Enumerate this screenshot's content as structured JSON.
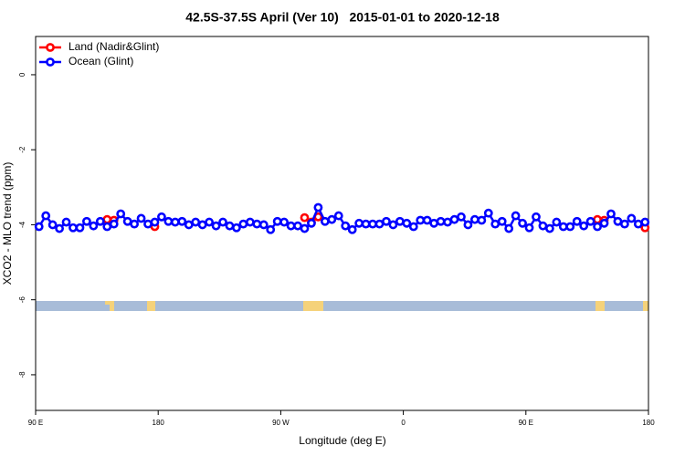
{
  "chart_data": {
    "type": "line",
    "title": "42.5S-37.5S April (Ver 10)   2015-01-01 to 2020-12-18",
    "x_label": "Longitude (deg E)",
    "y_label": "XCO2 - MLO trend (ppm)",
    "xlim": [
      90,
      540
    ],
    "ylim": [
      -8.95,
      1.02
    ],
    "xticks": [
      {
        "value": 90,
        "label": "90 E"
      },
      180,
      {
        "value": 270,
        "label": "90 W"
      },
      {
        "value": 360,
        "label": "0"
      },
      {
        "value": 450,
        "label": "90 E"
      },
      {
        "value": 540,
        "label": "180"
      }
    ],
    "yticks": [
      0,
      -2,
      -4,
      -6,
      -8
    ],
    "legend": "top-left",
    "x": [
      92.5,
      97.5,
      102.5,
      107.5,
      112.5,
      117.5,
      122.5,
      127.5,
      132.5,
      137.5,
      142.5,
      147.5,
      152.5,
      157.5,
      162.5,
      167.5,
      172.5,
      177.5,
      182.5,
      187.5,
      192.5,
      197.5,
      202.5,
      207.5,
      212.5,
      217.5,
      222.5,
      227.5,
      232.5,
      237.5,
      242.5,
      247.5,
      252.5,
      257.5,
      262.5,
      267.5,
      272.5,
      277.5,
      282.5,
      287.5,
      292.5,
      297.5,
      302.5,
      307.5,
      312.5,
      317.5,
      322.5,
      327.5,
      332.5,
      337.5,
      342.5,
      347.5,
      352.5,
      357.5,
      362.5,
      367.5,
      372.5,
      377.5,
      382.5,
      387.5,
      392.5,
      397.5,
      402.5,
      407.5,
      412.5,
      417.5,
      422.5,
      427.5,
      432.5,
      437.5,
      442.5,
      447.5,
      452.5,
      457.5,
      462.5,
      467.5,
      472.5,
      477.5,
      482.5,
      487.5,
      492.5,
      497.5,
      502.5,
      507.5,
      512.5,
      517.5,
      522.5,
      527.5,
      532.5,
      537.5
    ],
    "series": [
      {
        "name": "Land (Nadir&Glint)",
        "color": "#ff0000",
        "values": [
          null,
          null,
          null,
          null,
          null,
          null,
          null,
          null,
          null,
          null,
          -3.86,
          -3.88,
          null,
          null,
          null,
          null,
          null,
          -4.05,
          null,
          null,
          null,
          null,
          null,
          null,
          null,
          null,
          null,
          null,
          null,
          null,
          null,
          null,
          null,
          null,
          null,
          null,
          null,
          null,
          null,
          -3.81,
          -3.93,
          -3.79,
          null,
          null,
          null,
          null,
          null,
          null,
          null,
          null,
          null,
          null,
          null,
          null,
          null,
          null,
          null,
          null,
          null,
          null,
          null,
          null,
          null,
          null,
          null,
          null,
          null,
          null,
          null,
          null,
          null,
          null,
          null,
          null,
          null,
          null,
          null,
          null,
          null,
          null,
          null,
          null,
          -3.86,
          -3.88,
          null,
          null,
          null,
          null,
          null,
          -4.08
        ]
      },
      {
        "name": "Ocean (Glint)",
        "color": "#0000ff",
        "values": [
          -4.05,
          -3.76,
          -4.0,
          -4.1,
          -3.93,
          -4.08,
          -4.08,
          -3.91,
          -4.03,
          -3.91,
          -4.05,
          -3.98,
          -3.71,
          -3.91,
          -3.98,
          -3.83,
          -3.98,
          -3.93,
          -3.79,
          -3.91,
          -3.93,
          -3.91,
          -4.0,
          -3.93,
          -4.0,
          -3.93,
          -4.03,
          -3.93,
          -4.03,
          -4.08,
          -3.98,
          -3.93,
          -3.98,
          -4.0,
          -4.13,
          -3.91,
          -3.93,
          -4.03,
          -4.03,
          -4.1,
          -3.96,
          -3.54,
          -3.91,
          -3.86,
          -3.76,
          -4.03,
          -4.13,
          -3.96,
          -3.98,
          -3.98,
          -3.98,
          -3.91,
          -4.0,
          -3.91,
          -3.96,
          -4.05,
          -3.88,
          -3.88,
          -3.96,
          -3.91,
          -3.93,
          -3.86,
          -3.79,
          -4.0,
          -3.86,
          -3.88,
          -3.69,
          -3.98,
          -3.91,
          -4.1,
          -3.76,
          -3.96,
          -4.08,
          -3.79,
          -4.03,
          -4.1,
          -3.93,
          -4.05,
          -4.05,
          -3.91,
          -4.03,
          -3.91,
          -4.05,
          -3.96,
          -3.71,
          -3.91,
          -3.98,
          -3.83,
          -3.98,
          -3.93
        ]
      }
    ]
  }
}
